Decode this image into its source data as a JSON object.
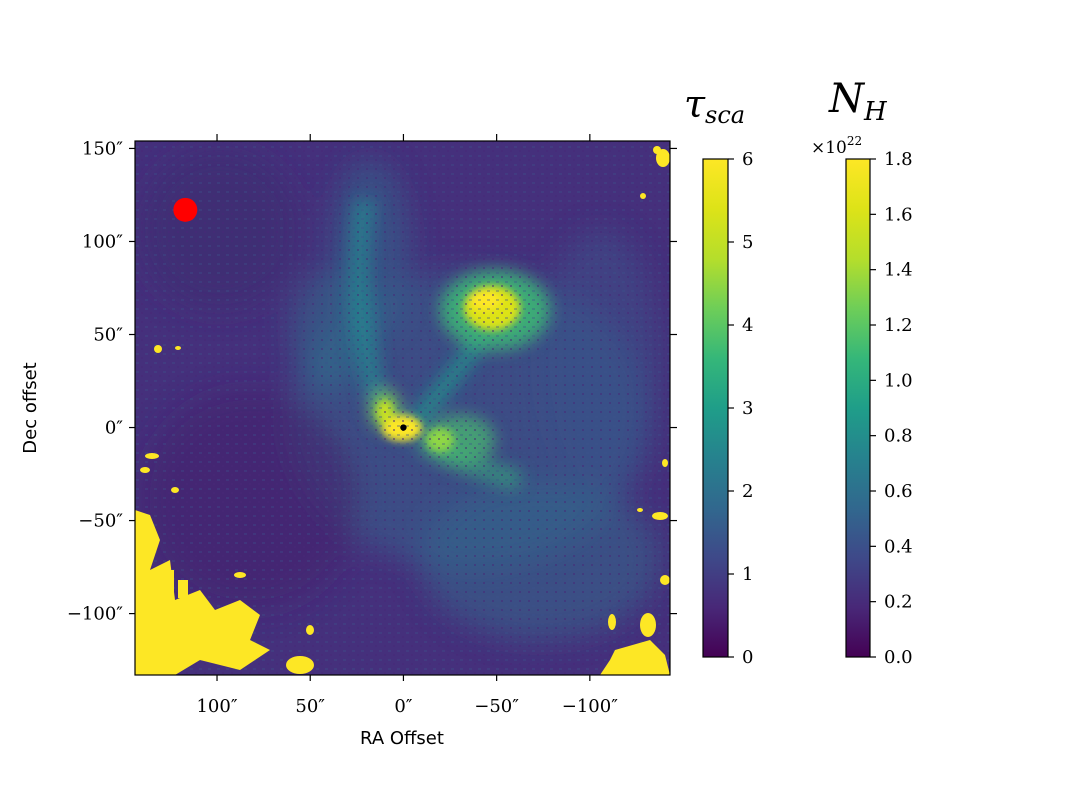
{
  "chart_data": [
    {
      "type": "heatmap",
      "xlabel": "RA Offset",
      "ylabel": "Dec offset",
      "x_ticks": [
        {
          "value": 100,
          "label": "100″"
        },
        {
          "value": 50,
          "label": "50″"
        },
        {
          "value": 0,
          "label": "0″"
        },
        {
          "value": -50,
          "label": "−50″"
        },
        {
          "value": -100,
          "label": "−100″"
        }
      ],
      "y_ticks": [
        {
          "value": 150,
          "label": "150″"
        },
        {
          "value": 100,
          "label": "100″"
        },
        {
          "value": 50,
          "label": "50″"
        },
        {
          "value": 0,
          "label": "0″"
        },
        {
          "value": -50,
          "label": "−50″"
        },
        {
          "value": -100,
          "label": "−100″"
        }
      ],
      "xlim": [
        144,
        -143
      ],
      "ylim": [
        -133,
        154
      ],
      "colormap": "viridis",
      "color_range": [
        0,
        6
      ],
      "markers": [
        {
          "name": "beam",
          "x": 117,
          "y": 117,
          "color": "#ff0000"
        },
        {
          "name": "source",
          "x": 0,
          "y": 0,
          "color": "#000000"
        }
      ],
      "features": [
        {
          "name": "central bright core",
          "x": 0,
          "y": 0,
          "value": 6
        },
        {
          "name": "northwest clump",
          "x": -45,
          "y": 62,
          "value": 5.5
        },
        {
          "name": "northern arc",
          "x": 20,
          "y": 40,
          "value": 3.5
        }
      ]
    },
    {
      "type": "colorbar",
      "title_base": "τ",
      "title_sub": "sca",
      "range": [
        0,
        6
      ],
      "ticks": [
        "0",
        "1",
        "2",
        "3",
        "4",
        "5",
        "6"
      ],
      "tick_values": [
        0,
        1,
        2,
        3,
        4,
        5,
        6
      ],
      "colormap": "viridis"
    },
    {
      "type": "colorbar",
      "title_base": "N",
      "title_sub": "H",
      "offset_base": "×10",
      "offset_exp": "22",
      "range": [
        0,
        1.8
      ],
      "ticks": [
        "0.0",
        "0.2",
        "0.4",
        "0.6",
        "0.8",
        "1.0",
        "1.2",
        "1.4",
        "1.6",
        "1.8"
      ],
      "tick_values": [
        0,
        0.2,
        0.4,
        0.6,
        0.8,
        1.0,
        1.2,
        1.4,
        1.6,
        1.8
      ],
      "colormap": "viridis"
    }
  ],
  "colors": {
    "background": "#440154",
    "low": "#46327e",
    "high": "#fde725",
    "beam": "#ff0000"
  }
}
